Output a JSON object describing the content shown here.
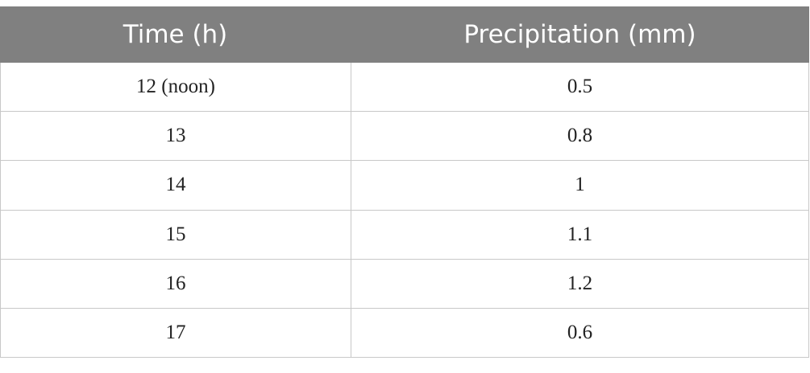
{
  "table": {
    "header": [
      "Time (h)",
      "Precipitation (mm)"
    ],
    "rows": [
      [
        "12 (noon)",
        "0.5"
      ],
      [
        "13",
        "0.8"
      ],
      [
        "14",
        "1"
      ],
      [
        "15",
        "1.1"
      ],
      [
        "16",
        "1.2"
      ],
      [
        "17",
        "0.6"
      ]
    ]
  }
}
